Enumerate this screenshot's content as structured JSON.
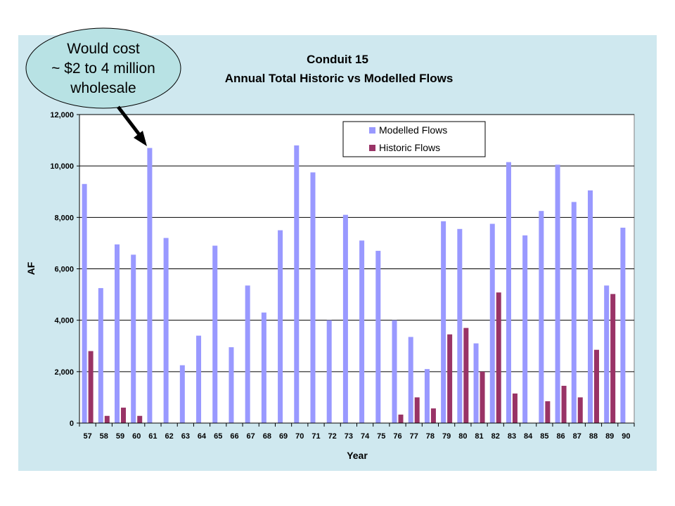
{
  "callout": {
    "lines": [
      "Would cost",
      "~ $2 to 4 million",
      "wholesale"
    ],
    "fill": "#b8e2e4"
  },
  "chart_data": {
    "type": "bar",
    "title": "Conduit 15",
    "subtitle": "Annual Total Historic vs Modelled Flows",
    "xlabel": "Year",
    "ylabel": "AF",
    "ylim": [
      0,
      12000
    ],
    "yticks": [
      0,
      2000,
      4000,
      6000,
      8000,
      10000,
      12000
    ],
    "ytick_labels": [
      "0",
      "2,000",
      "4,000",
      "6,000",
      "8,000",
      "10,000",
      "12,000"
    ],
    "grid": true,
    "legend_position": "top-right",
    "categories": [
      "57",
      "58",
      "59",
      "60",
      "61",
      "62",
      "63",
      "64",
      "65",
      "66",
      "67",
      "68",
      "69",
      "70",
      "71",
      "72",
      "73",
      "74",
      "75",
      "76",
      "77",
      "78",
      "79",
      "80",
      "81",
      "82",
      "83",
      "84",
      "85",
      "86",
      "87",
      "88",
      "89",
      "90"
    ],
    "series": [
      {
        "name": "Modelled Flows",
        "color": "#9999ff",
        "values": [
          9300,
          5250,
          6950,
          6550,
          10700,
          7200,
          2250,
          3400,
          6900,
          2950,
          5350,
          4300,
          7500,
          10800,
          9750,
          4000,
          8100,
          7100,
          6700,
          4000,
          3350,
          2100,
          7850,
          7550,
          3100,
          7750,
          10150,
          7300,
          8250,
          10050,
          8600,
          9050,
          5350,
          7600
        ]
      },
      {
        "name": "Historic Flows",
        "color": "#993366",
        "values": [
          2800,
          280,
          600,
          280,
          0,
          0,
          0,
          0,
          0,
          0,
          0,
          0,
          0,
          0,
          0,
          0,
          0,
          0,
          0,
          330,
          1000,
          570,
          3450,
          3700,
          2000,
          5080,
          1150,
          0,
          850,
          1450,
          1000,
          2850,
          5020,
          0
        ]
      }
    ]
  }
}
